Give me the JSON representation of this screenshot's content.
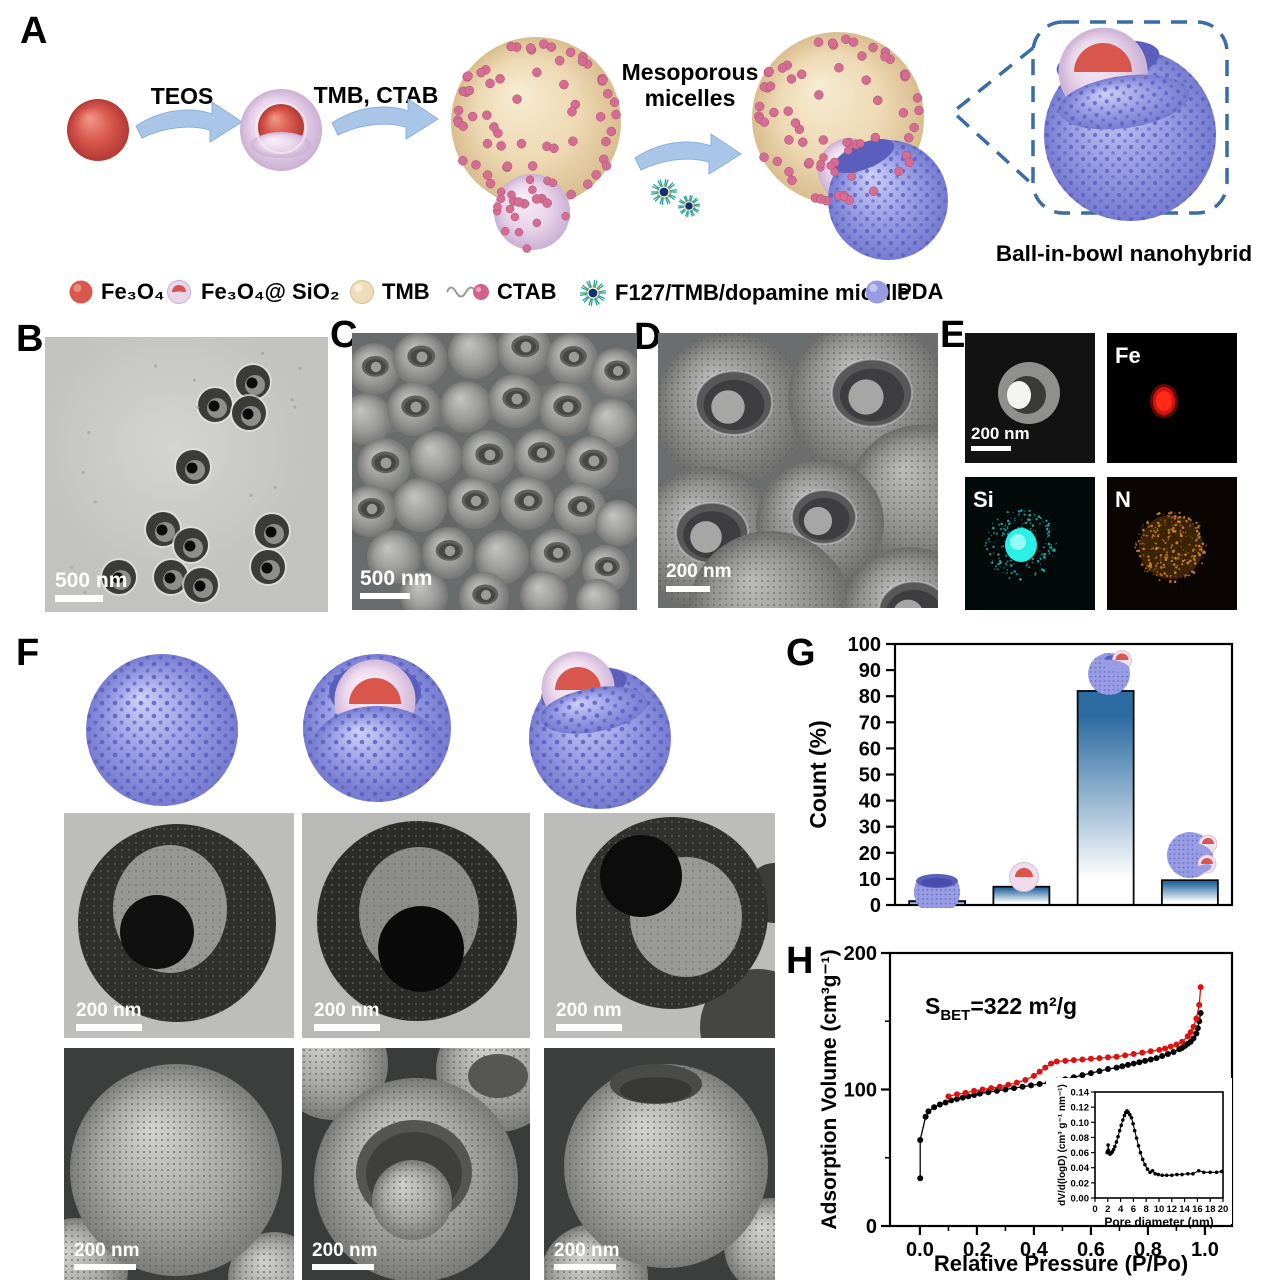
{
  "panel_labels": {
    "A": "A",
    "B": "B",
    "C": "C",
    "D": "D",
    "E": "E",
    "F": "F",
    "G": "G",
    "H": "H"
  },
  "schematic": {
    "step1_label": "TEOS",
    "step2_label": "TMB, CTAB",
    "step3_label_line1": "Mesoporous",
    "step3_label_line2": "micelles",
    "callout_label": "Ball-in-bowl nanohybrid"
  },
  "legend": {
    "items": [
      {
        "icon": "fe3o4-sphere-icon",
        "label": "Fe₃O₄"
      },
      {
        "icon": "core-shell-sphere-icon",
        "label": "Fe₃O₄@ SiO₂"
      },
      {
        "icon": "tmb-sphere-icon",
        "label": "TMB"
      },
      {
        "icon": "ctab-surfactant-icon",
        "label": "CTAB"
      },
      {
        "icon": "micelle-star-icon",
        "label": "F127/TMB/dopamine micelle"
      },
      {
        "icon": "pda-sphere-icon",
        "label": "PDA"
      }
    ]
  },
  "micrographs": {
    "B": {
      "scale_label": "500 nm"
    },
    "C": {
      "scale_label": "500 nm"
    },
    "D": {
      "scale_label": "200 nm"
    },
    "E": {
      "scale_label": "200 nm",
      "map1": "Fe",
      "map2": "Si",
      "map3": "N"
    },
    "F": {
      "tem1": "200 nm",
      "tem2": "200 nm",
      "tem3": "200 nm",
      "sem1": "200 nm",
      "sem2": "200 nm",
      "sem3": "200 nm"
    }
  },
  "chart_data": [
    {
      "id": "chartG",
      "type": "bar",
      "ylabel": "Count (%)",
      "categories": [
        "empty-bowl",
        "core-shell-particle",
        "ball-in-bowl",
        "double-ball-in-bowl"
      ],
      "values": [
        1.5,
        7,
        82,
        9.5
      ],
      "ylim": [
        0,
        100
      ],
      "ytick_step": 10,
      "grid": false,
      "bar_color_top": "#2c6ba1",
      "bar_color_bottom": "#ffffff",
      "bar_stroke": "#0a0a0a"
    },
    {
      "id": "chartH",
      "type": "line",
      "xlabel": "Relative Pressure (P/Po)",
      "ylabel": "Adsorption Volume (cm³g⁻¹)",
      "annotation": {
        "prefix": "S",
        "sub": "BET",
        "rest": "=322 m²/g"
      },
      "xlim": [
        -0.105,
        1.095
      ],
      "ylim": [
        0,
        200
      ],
      "xticks_major": [
        0.0,
        0.2,
        0.4,
        0.6,
        0.8,
        1.0
      ],
      "xticks_minor": [
        0.1,
        0.3,
        0.5,
        0.7,
        0.9
      ],
      "yticks_major": [
        0,
        100,
        200
      ],
      "yticks_minor": [
        50,
        150
      ],
      "series": [
        {
          "name": "adsorption",
          "color": "#000000",
          "points": [
            [
              0.001,
              35
            ],
            [
              0.001,
              63
            ],
            [
              0.02,
              80
            ],
            [
              0.03,
              84
            ],
            [
              0.05,
              87
            ],
            [
              0.07,
              89
            ],
            [
              0.09,
              90.5
            ],
            [
              0.11,
              92
            ],
            [
              0.13,
              93
            ],
            [
              0.15,
              94
            ],
            [
              0.17,
              95
            ],
            [
              0.19,
              96
            ],
            [
              0.21,
              97
            ],
            [
              0.24,
              98
            ],
            [
              0.27,
              99
            ],
            [
              0.3,
              100
            ],
            [
              0.33,
              101
            ],
            [
              0.36,
              102
            ],
            [
              0.39,
              103
            ],
            [
              0.42,
              104
            ],
            [
              0.45,
              105
            ],
            [
              0.48,
              106.5
            ],
            [
              0.51,
              107.5
            ],
            [
              0.54,
              109
            ],
            [
              0.57,
              110.5
            ],
            [
              0.6,
              112
            ],
            [
              0.63,
              113.5
            ],
            [
              0.66,
              115
            ],
            [
              0.69,
              116
            ],
            [
              0.71,
              117
            ],
            [
              0.73,
              118
            ],
            [
              0.75,
              119
            ],
            [
              0.77,
              120
            ],
            [
              0.79,
              121
            ],
            [
              0.81,
              122
            ],
            [
              0.83,
              123
            ],
            [
              0.85,
              124.5
            ],
            [
              0.87,
              126
            ],
            [
              0.89,
              127.5
            ],
            [
              0.91,
              129.5
            ],
            [
              0.92,
              130.5
            ],
            [
              0.93,
              132
            ],
            [
              0.94,
              133.5
            ],
            [
              0.95,
              135
            ],
            [
              0.96,
              137.5
            ],
            [
              0.97,
              141
            ],
            [
              0.975,
              145
            ],
            [
              0.98,
              150
            ],
            [
              0.985,
              156
            ]
          ]
        },
        {
          "name": "desorption",
          "color": "#e01010",
          "points": [
            [
              0.1,
              95
            ],
            [
              0.13,
              96.5
            ],
            [
              0.16,
              97.5
            ],
            [
              0.19,
              99
            ],
            [
              0.22,
              100
            ],
            [
              0.25,
              101
            ],
            [
              0.28,
              102
            ],
            [
              0.31,
              103.5
            ],
            [
              0.34,
              105
            ],
            [
              0.37,
              107
            ],
            [
              0.4,
              110
            ],
            [
              0.42,
              113
            ],
            [
              0.44,
              116
            ],
            [
              0.46,
              119
            ],
            [
              0.48,
              120.5
            ],
            [
              0.51,
              121
            ],
            [
              0.54,
              121.5
            ],
            [
              0.57,
              122
            ],
            [
              0.6,
              122.5
            ],
            [
              0.63,
              123
            ],
            [
              0.66,
              123.5
            ],
            [
              0.69,
              124
            ],
            [
              0.72,
              125
            ],
            [
              0.75,
              126
            ],
            [
              0.78,
              127
            ],
            [
              0.81,
              128
            ],
            [
              0.84,
              129
            ],
            [
              0.86,
              130
            ],
            [
              0.88,
              131.5
            ],
            [
              0.9,
              133
            ],
            [
              0.92,
              135
            ],
            [
              0.94,
              139
            ],
            [
              0.95,
              142
            ],
            [
              0.96,
              146
            ],
            [
              0.97,
              152
            ],
            [
              0.98,
              162
            ],
            [
              0.985,
              175
            ]
          ]
        }
      ],
      "inset": {
        "xlabel": "Pore diameter (nm)",
        "ylabel": "dV/d(logD) (cm³ g⁻¹ nm⁻¹)",
        "xlim": [
          0,
          20
        ],
        "ylim": [
          0,
          0.14
        ],
        "xtick_step": 2,
        "ytick_step": 0.02,
        "series": [
          {
            "name": "pore-size-distribution",
            "color": "#000000",
            "points": [
              [
                1.9,
                0.06
              ],
              [
                2.0,
                0.062
              ],
              [
                2.05,
                0.07
              ],
              [
                2.1,
                0.063
              ],
              [
                2.2,
                0.06
              ],
              [
                2.35,
                0.058
              ],
              [
                2.5,
                0.059
              ],
              [
                2.7,
                0.061
              ],
              [
                2.9,
                0.064
              ],
              [
                3.1,
                0.068
              ],
              [
                3.35,
                0.074
              ],
              [
                3.6,
                0.081
              ],
              [
                3.85,
                0.089
              ],
              [
                4.1,
                0.096
              ],
              [
                4.35,
                0.103
              ],
              [
                4.6,
                0.109
              ],
              [
                4.8,
                0.113
              ],
              [
                5.0,
                0.115
              ],
              [
                5.2,
                0.113
              ],
              [
                5.45,
                0.11
              ],
              [
                5.7,
                0.106
              ],
              [
                5.95,
                0.098
              ],
              [
                6.2,
                0.089
              ],
              [
                6.5,
                0.079
              ],
              [
                6.8,
                0.069
              ],
              [
                7.1,
                0.06
              ],
              [
                7.45,
                0.051
              ],
              [
                7.8,
                0.044
              ],
              [
                8.2,
                0.038
              ],
              [
                8.6,
                0.034
              ],
              [
                9.0,
                0.036
              ],
              [
                9.4,
                0.032
              ],
              [
                9.9,
                0.031
              ],
              [
                10.5,
                0.03
              ],
              [
                11.2,
                0.03
              ],
              [
                12.0,
                0.03
              ],
              [
                12.8,
                0.031
              ],
              [
                13.6,
                0.031
              ],
              [
                14.5,
                0.032
              ],
              [
                15.3,
                0.032
              ],
              [
                16.2,
                0.036
              ],
              [
                17.0,
                0.034
              ],
              [
                18.0,
                0.034
              ],
              [
                19.0,
                0.034
              ],
              [
                19.8,
                0.035
              ]
            ]
          }
        ]
      }
    }
  ]
}
